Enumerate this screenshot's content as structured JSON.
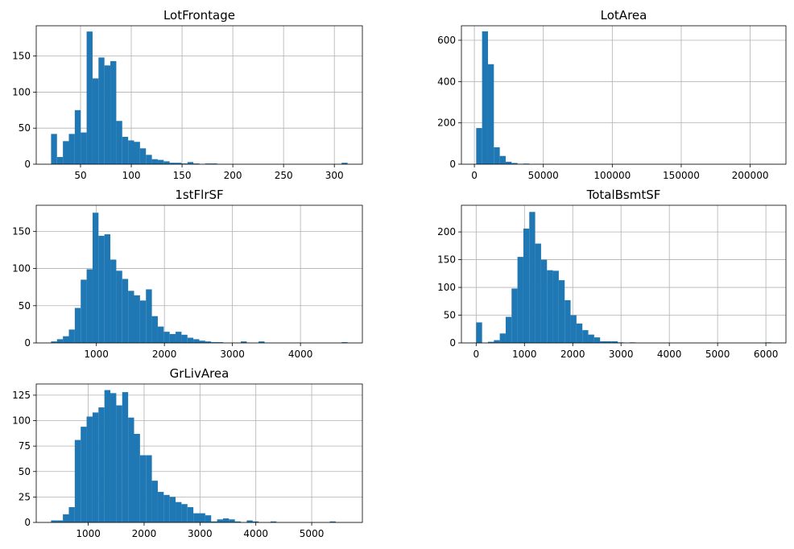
{
  "figure": {
    "background": "#ffffff"
  },
  "chart_data": [
    {
      "type": "bar",
      "kind": "histogram",
      "title": "LotFrontage",
      "color": "#1f77b4",
      "grid": true,
      "bin_range": [
        21,
        313
      ],
      "xlim": [
        6.4,
        327.6
      ],
      "ylim": [
        0,
        192
      ],
      "xticks": [
        50,
        100,
        150,
        200,
        250,
        300
      ],
      "yticks": [
        0,
        50,
        100,
        150
      ],
      "counts": [
        42,
        10,
        32,
        42,
        75,
        44,
        184,
        119,
        148,
        137,
        143,
        60,
        38,
        33,
        31,
        22,
        13,
        7,
        6,
        4,
        2,
        2,
        1,
        3,
        1,
        0,
        1,
        1,
        0,
        0,
        0,
        0,
        0,
        0,
        0,
        0,
        0,
        0,
        0,
        0,
        0,
        0,
        0,
        0,
        0,
        0,
        0,
        0,
        0,
        2
      ]
    },
    {
      "type": "bar",
      "kind": "histogram",
      "title": "LotArea",
      "color": "#1f77b4",
      "grid": true,
      "bin_range": [
        1300,
        215245
      ],
      "xlim": [
        -9397,
        225942
      ],
      "ylim": [
        0,
        670
      ],
      "xticks": [
        0,
        50000,
        100000,
        150000,
        200000
      ],
      "yticks": [
        0,
        200,
        400,
        600
      ],
      "counts": [
        175,
        643,
        484,
        82,
        40,
        12,
        6,
        2,
        3,
        0,
        1,
        0,
        1,
        0,
        0,
        0,
        0,
        0,
        0,
        0,
        0,
        0,
        0,
        0,
        0,
        0,
        0,
        0,
        0,
        0,
        0,
        0,
        0,
        0,
        0,
        0,
        0,
        0,
        0,
        0,
        0,
        0,
        0,
        0,
        0,
        0,
        0,
        0,
        0,
        1
      ]
    },
    {
      "type": "bar",
      "kind": "histogram",
      "title": "1stFlrSF",
      "color": "#1f77b4",
      "grid": true,
      "bin_range": [
        334,
        4692
      ],
      "xlim": [
        116,
        4910
      ],
      "ylim": [
        0,
        185
      ],
      "xticks": [
        1000,
        2000,
        3000,
        4000
      ],
      "yticks": [
        0,
        50,
        100,
        150
      ],
      "counts": [
        2,
        5,
        9,
        18,
        47,
        85,
        99,
        175,
        144,
        146,
        112,
        97,
        86,
        70,
        64,
        57,
        72,
        36,
        22,
        15,
        12,
        15,
        11,
        7,
        5,
        3,
        2,
        1,
        1,
        0,
        0,
        0,
        2,
        0,
        0,
        2,
        0,
        0,
        0,
        0,
        0,
        0,
        0,
        0,
        0,
        0,
        0,
        0,
        0,
        1
      ]
    },
    {
      "type": "bar",
      "kind": "histogram",
      "title": "TotalBsmtSF",
      "color": "#1f77b4",
      "grid": true,
      "bin_range": [
        0,
        6110
      ],
      "xlim": [
        -305.5,
        6415.5
      ],
      "ylim": [
        0,
        248
      ],
      "xticks": [
        0,
        1000,
        2000,
        3000,
        4000,
        5000,
        6000
      ],
      "yticks": [
        0,
        50,
        100,
        150,
        200
      ],
      "counts": [
        37,
        0,
        2,
        5,
        17,
        47,
        98,
        155,
        206,
        236,
        179,
        150,
        131,
        130,
        113,
        77,
        50,
        35,
        23,
        15,
        10,
        3,
        3,
        3,
        1,
        0,
        1,
        0,
        0,
        0,
        0,
        0,
        0,
        0,
        0,
        0,
        0,
        0,
        0,
        0,
        0,
        0,
        0,
        0,
        0,
        0,
        0,
        0,
        0,
        1
      ]
    },
    {
      "type": "bar",
      "kind": "histogram",
      "title": "GrLivArea",
      "color": "#1f77b4",
      "grid": true,
      "bin_range": [
        334,
        5642
      ],
      "xlim": [
        69,
        5907
      ],
      "ylim": [
        0,
        136
      ],
      "xticks": [
        1000,
        2000,
        3000,
        4000,
        5000
      ],
      "yticks": [
        0,
        25,
        50,
        75,
        100,
        125
      ],
      "counts": [
        2,
        2,
        8,
        15,
        81,
        94,
        104,
        108,
        113,
        130,
        127,
        115,
        128,
        103,
        87,
        66,
        66,
        41,
        30,
        27,
        25,
        20,
        18,
        15,
        9,
        9,
        7,
        1,
        3,
        4,
        3,
        1,
        0,
        2,
        1,
        0,
        0,
        1,
        0,
        0,
        0,
        0,
        0,
        0,
        0,
        0,
        0,
        1,
        0,
        0
      ]
    }
  ]
}
